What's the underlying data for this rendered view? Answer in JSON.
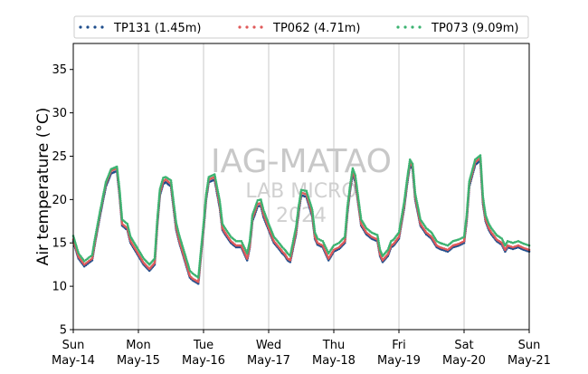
{
  "chart_data": {
    "type": "scatter",
    "title": "",
    "xlabel": "",
    "ylabel": "Air temperature (°C)",
    "watermark": [
      "IAG-MATAO",
      "LAB MICRO",
      "2024"
    ],
    "ylim": [
      5,
      38
    ],
    "yticks": [
      5,
      10,
      15,
      20,
      25,
      30,
      35
    ],
    "xlim": [
      0,
      7
    ],
    "xticks": [
      {
        "x": 0,
        "line1": "Sun",
        "line2": "May-14"
      },
      {
        "x": 1,
        "line1": "Mon",
        "line2": "May-15"
      },
      {
        "x": 2,
        "line1": "Tue",
        "line2": "May-16"
      },
      {
        "x": 3,
        "line1": "Wed",
        "line2": "May-17"
      },
      {
        "x": 4,
        "line1": "Thu",
        "line2": "May-18"
      },
      {
        "x": 5,
        "line1": "Fri",
        "line2": "May-19"
      },
      {
        "x": 6,
        "line1": "Sat",
        "line2": "May-20"
      },
      {
        "x": 7,
        "line1": "Sun",
        "line2": "May-21"
      }
    ],
    "grid": "vertical",
    "legend_position": "top",
    "series": [
      {
        "name": "TP131 (1.45m)",
        "color": "#1f4e8c",
        "x": [
          0.0,
          0.08,
          0.17,
          0.29,
          0.33,
          0.42,
          0.5,
          0.58,
          0.67,
          0.71,
          0.75,
          0.83,
          0.88,
          0.92,
          1.0,
          1.08,
          1.17,
          1.25,
          1.29,
          1.33,
          1.38,
          1.42,
          1.5,
          1.58,
          1.63,
          1.67,
          1.75,
          1.79,
          1.83,
          1.92,
          2.0,
          2.04,
          2.08,
          2.17,
          2.25,
          2.29,
          2.33,
          2.42,
          2.5,
          2.58,
          2.67,
          2.71,
          2.75,
          2.83,
          2.88,
          2.92,
          3.0,
          3.08,
          3.17,
          3.21,
          3.25,
          3.29,
          3.33,
          3.42,
          3.46,
          3.5,
          3.58,
          3.67,
          3.71,
          3.75,
          3.83,
          3.92,
          4.0,
          4.08,
          4.17,
          4.21,
          4.25,
          4.29,
          4.33,
          4.42,
          4.5,
          4.58,
          4.67,
          4.71,
          4.75,
          4.83,
          4.88,
          4.92,
          5.0,
          5.08,
          5.13,
          5.17,
          5.21,
          5.25,
          5.33,
          5.42,
          5.5,
          5.58,
          5.63,
          5.67,
          5.75,
          5.83,
          5.92,
          6.0,
          6.04,
          6.08,
          6.17,
          6.25,
          6.29,
          6.33,
          6.38,
          6.42,
          6.5,
          6.58,
          6.63,
          6.67,
          6.75,
          6.83,
          6.92,
          7.0
        ],
        "y": [
          15.2,
          13.2,
          12.3,
          13.0,
          14.8,
          18.5,
          21.5,
          23.0,
          23.3,
          20.5,
          17.0,
          16.5,
          15.0,
          14.5,
          13.5,
          12.5,
          11.8,
          12.5,
          17.0,
          20.5,
          21.8,
          22.0,
          21.5,
          16.5,
          15.0,
          14.0,
          12.0,
          11.0,
          10.7,
          10.3,
          16.5,
          20.0,
          22.0,
          22.3,
          19.0,
          16.5,
          16.0,
          15.0,
          14.5,
          14.5,
          13.0,
          14.5,
          17.5,
          19.2,
          19.3,
          18.0,
          16.5,
          15.0,
          14.2,
          13.8,
          13.5,
          13.0,
          12.8,
          16.0,
          18.5,
          20.5,
          20.3,
          18.0,
          15.5,
          14.8,
          14.5,
          13.0,
          14.0,
          14.3,
          15.0,
          18.5,
          21.0,
          23.0,
          22.0,
          17.0,
          16.0,
          15.5,
          15.2,
          13.5,
          12.8,
          13.5,
          14.5,
          14.7,
          15.5,
          19.0,
          22.0,
          24.0,
          23.5,
          20.0,
          17.0,
          16.0,
          15.5,
          14.5,
          14.3,
          14.2,
          14.0,
          14.5,
          14.7,
          15.0,
          17.5,
          21.5,
          24.0,
          24.5,
          19.5,
          17.5,
          16.5,
          16.0,
          15.2,
          14.8,
          14.0,
          14.5,
          14.3,
          14.5,
          14.2,
          14.0
        ]
      },
      {
        "name": "TP062 (4.71m)",
        "color": "#e05a5a",
        "x": [
          0.0,
          0.08,
          0.17,
          0.29,
          0.33,
          0.42,
          0.5,
          0.58,
          0.67,
          0.71,
          0.75,
          0.83,
          0.88,
          0.92,
          1.0,
          1.08,
          1.17,
          1.25,
          1.29,
          1.33,
          1.38,
          1.42,
          1.5,
          1.58,
          1.63,
          1.67,
          1.75,
          1.79,
          1.83,
          1.92,
          2.0,
          2.04,
          2.08,
          2.17,
          2.25,
          2.29,
          2.33,
          2.42,
          2.5,
          2.58,
          2.67,
          2.71,
          2.75,
          2.83,
          2.88,
          2.92,
          3.0,
          3.08,
          3.17,
          3.21,
          3.25,
          3.29,
          3.33,
          3.42,
          3.46,
          3.5,
          3.58,
          3.67,
          3.71,
          3.75,
          3.83,
          3.92,
          4.0,
          4.08,
          4.17,
          4.21,
          4.25,
          4.29,
          4.33,
          4.42,
          4.5,
          4.58,
          4.67,
          4.71,
          4.75,
          4.83,
          4.88,
          4.92,
          5.0,
          5.08,
          5.13,
          5.17,
          5.21,
          5.25,
          5.33,
          5.42,
          5.5,
          5.58,
          5.63,
          5.67,
          5.75,
          5.83,
          5.92,
          6.0,
          6.04,
          6.08,
          6.17,
          6.25,
          6.29,
          6.33,
          6.38,
          6.42,
          6.5,
          6.58,
          6.63,
          6.67,
          6.75,
          6.83,
          6.92,
          7.0
        ],
        "y": [
          15.4,
          13.4,
          12.5,
          13.2,
          15.0,
          18.8,
          21.8,
          23.3,
          23.6,
          20.8,
          17.2,
          16.7,
          15.2,
          14.7,
          13.7,
          12.7,
          12.0,
          12.7,
          17.3,
          20.8,
          22.1,
          22.3,
          21.8,
          16.8,
          15.2,
          14.2,
          12.2,
          11.2,
          10.9,
          10.5,
          16.8,
          20.3,
          22.3,
          22.6,
          19.3,
          16.7,
          16.2,
          15.2,
          14.7,
          14.7,
          13.2,
          14.7,
          17.8,
          19.5,
          19.6,
          18.3,
          16.7,
          15.2,
          14.4,
          14.0,
          13.7,
          13.2,
          13.0,
          16.3,
          18.8,
          20.8,
          20.6,
          18.3,
          15.7,
          15.0,
          14.7,
          13.2,
          14.2,
          14.5,
          15.2,
          18.8,
          21.3,
          23.3,
          22.3,
          17.2,
          16.2,
          15.7,
          15.4,
          13.7,
          13.0,
          13.7,
          14.7,
          14.9,
          15.7,
          19.3,
          22.3,
          24.3,
          23.8,
          20.3,
          17.2,
          16.2,
          15.7,
          14.7,
          14.5,
          14.4,
          14.2,
          14.7,
          14.9,
          15.2,
          17.8,
          21.8,
          24.3,
          24.8,
          19.8,
          17.7,
          16.7,
          16.2,
          15.4,
          15.0,
          14.2,
          14.7,
          14.5,
          14.7,
          14.4,
          14.2
        ]
      },
      {
        "name": "TP073 (9.09m)",
        "color": "#3cb371",
        "x": [
          0.0,
          0.08,
          0.17,
          0.29,
          0.33,
          0.42,
          0.5,
          0.58,
          0.67,
          0.71,
          0.75,
          0.83,
          0.88,
          0.92,
          1.0,
          1.08,
          1.17,
          1.25,
          1.29,
          1.33,
          1.38,
          1.42,
          1.5,
          1.58,
          1.63,
          1.67,
          1.75,
          1.79,
          1.83,
          1.92,
          2.0,
          2.04,
          2.08,
          2.17,
          2.25,
          2.29,
          2.33,
          2.42,
          2.5,
          2.58,
          2.67,
          2.71,
          2.75,
          2.83,
          2.88,
          2.92,
          3.0,
          3.08,
          3.17,
          3.21,
          3.25,
          3.29,
          3.33,
          3.42,
          3.46,
          3.5,
          3.58,
          3.67,
          3.71,
          3.75,
          3.83,
          3.92,
          4.0,
          4.08,
          4.17,
          4.21,
          4.25,
          4.29,
          4.33,
          4.42,
          4.5,
          4.58,
          4.67,
          4.71,
          4.75,
          4.83,
          4.88,
          4.92,
          5.0,
          5.08,
          5.13,
          5.17,
          5.21,
          5.25,
          5.33,
          5.42,
          5.5,
          5.58,
          5.63,
          5.67,
          5.75,
          5.83,
          5.92,
          6.0,
          6.04,
          6.08,
          6.17,
          6.25,
          6.29,
          6.33,
          6.38,
          6.42,
          6.5,
          6.58,
          6.63,
          6.67,
          6.75,
          6.83,
          6.92,
          7.0
        ],
        "y": [
          15.8,
          13.8,
          12.9,
          13.6,
          15.4,
          19.0,
          22.0,
          23.5,
          23.8,
          21.2,
          17.7,
          17.2,
          15.7,
          15.2,
          14.2,
          13.2,
          12.5,
          13.2,
          17.7,
          21.2,
          22.5,
          22.6,
          22.2,
          17.3,
          15.8,
          14.8,
          12.8,
          11.8,
          11.5,
          11.0,
          17.2,
          20.6,
          22.6,
          22.9,
          19.8,
          17.2,
          16.7,
          15.7,
          15.2,
          15.2,
          13.8,
          15.2,
          18.2,
          19.9,
          20.0,
          18.8,
          17.2,
          15.7,
          14.9,
          14.5,
          14.2,
          13.8,
          13.5,
          16.8,
          19.2,
          21.1,
          21.0,
          18.8,
          16.2,
          15.5,
          15.2,
          13.8,
          14.7,
          15.0,
          15.7,
          19.2,
          21.6,
          23.6,
          22.8,
          17.7,
          16.7,
          16.2,
          15.9,
          14.2,
          13.5,
          14.2,
          15.2,
          15.4,
          16.2,
          19.7,
          22.6,
          24.6,
          24.1,
          20.7,
          17.7,
          16.7,
          16.2,
          15.2,
          15.0,
          14.9,
          14.7,
          15.2,
          15.4,
          15.7,
          18.2,
          22.1,
          24.6,
          25.1,
          20.3,
          18.2,
          17.2,
          16.7,
          15.9,
          15.5,
          14.7,
          15.2,
          15.0,
          15.2,
          14.9,
          14.7
        ]
      }
    ]
  }
}
